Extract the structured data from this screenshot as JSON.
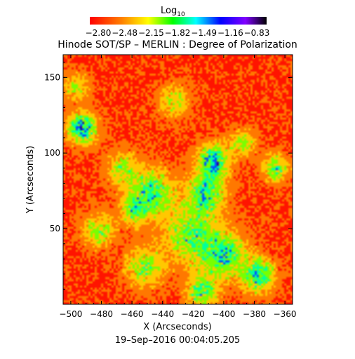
{
  "colorbar": {
    "label_base": "Log",
    "label_sub": "10",
    "ticks": [
      "−2.80",
      "−2.48",
      "−2.15",
      "−1.82",
      "−1.49",
      "−1.16",
      "−0.83"
    ],
    "colors": [
      "#ff0000",
      "#ff8000",
      "#ffff00",
      "#00ff00",
      "#00ffff",
      "#0000ff",
      "#8000ff",
      "#000000"
    ]
  },
  "title": "Hinode SOT/SP – MERLIN : Degree of Polarization",
  "footer": "19–Sep–2016 00:04:05.205",
  "chart_data": {
    "type": "heatmap",
    "xlabel": "X (Arcseconds)",
    "ylabel": "Y (Arcseconds)",
    "xlim": [
      -505,
      -355
    ],
    "ylim": [
      0,
      165
    ],
    "x_ticks": [
      "−500",
      "−480",
      "−460",
      "−440",
      "−420",
      "−400",
      "−380",
      "−360"
    ],
    "y_ticks": [
      "50",
      "100",
      "150"
    ],
    "x_tick_values": [
      -500,
      -480,
      -460,
      -440,
      -420,
      -400,
      -380,
      -360
    ],
    "y_tick_values": [
      50,
      100,
      150
    ],
    "colorbar_range": [
      -2.8,
      -0.83
    ]
  }
}
